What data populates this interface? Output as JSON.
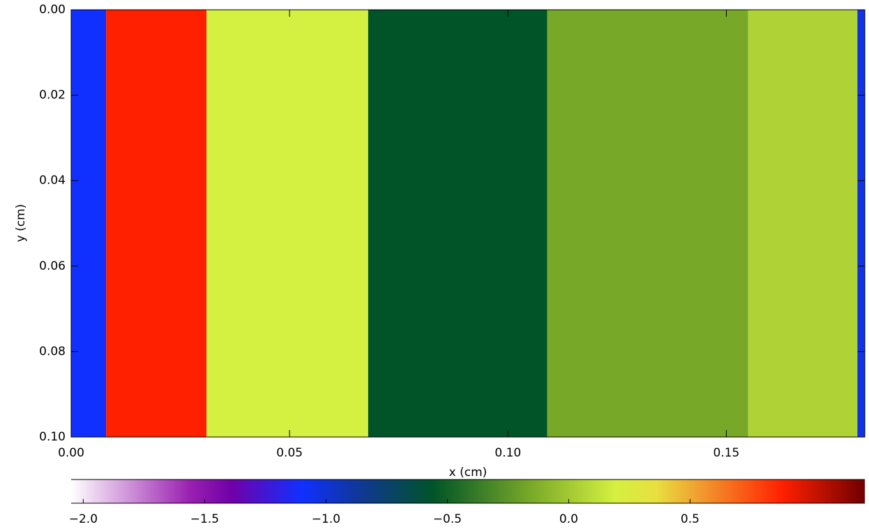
{
  "chart_data": {
    "type": "heatmap",
    "xlabel": "x (cm)",
    "ylabel": "y (cm)",
    "x_edges": [
      0,
      0.008,
      0.031,
      0.068,
      0.109,
      0.155,
      0.18,
      0.1817
    ],
    "values": [
      -1.1,
      0.88,
      0.19,
      -0.56,
      -0.16,
      0.05,
      -1.05
    ],
    "xlim": [
      0,
      0.1817
    ],
    "ylim": [
      0,
      0.1
    ],
    "xticks": [
      {
        "value": 0,
        "label": "0.00"
      },
      {
        "value": 0.05,
        "label": "0.05"
      },
      {
        "value": 0.1,
        "label": "0.10"
      },
      {
        "value": 0.15,
        "label": "0.15"
      }
    ],
    "yticks": [
      {
        "value": 0,
        "label": "0.00"
      },
      {
        "value": 0.02,
        "label": "0.02"
      },
      {
        "value": 0.04,
        "label": "0.04"
      },
      {
        "value": 0.06,
        "label": "0.06"
      },
      {
        "value": 0.08,
        "label": "0.08"
      },
      {
        "value": 0.1,
        "label": "0.10"
      }
    ],
    "colorbar": {
      "lim": [
        -2.05,
        1.22
      ],
      "ticks": [
        {
          "value": -2,
          "label": "−2.0"
        },
        {
          "value": -1.5,
          "label": "−1.5"
        },
        {
          "value": -1,
          "label": "−1.0"
        },
        {
          "value": -0.5,
          "label": "−0.5"
        },
        {
          "value": 0,
          "label": "0.0"
        },
        {
          "value": 0.5,
          "label": "0.5"
        }
      ],
      "stops": [
        {
          "value": -2.05,
          "color": "#ffffff"
        },
        {
          "value": -1.56,
          "color": "#9a20b0"
        },
        {
          "value": -1.39,
          "color": "#7000a8"
        },
        {
          "value": -1.1,
          "color": "#1030ff"
        },
        {
          "value": -0.85,
          "color": "#103890"
        },
        {
          "value": -0.56,
          "color": "#005428"
        },
        {
          "value": -0.16,
          "color": "#78a828"
        },
        {
          "value": 0.19,
          "color": "#d4f040"
        },
        {
          "value": 0.36,
          "color": "#e8e040"
        },
        {
          "value": 0.53,
          "color": "#f0a030"
        },
        {
          "value": 0.88,
          "color": "#ff2000"
        },
        {
          "value": 1.22,
          "color": "#700000"
        }
      ]
    }
  }
}
